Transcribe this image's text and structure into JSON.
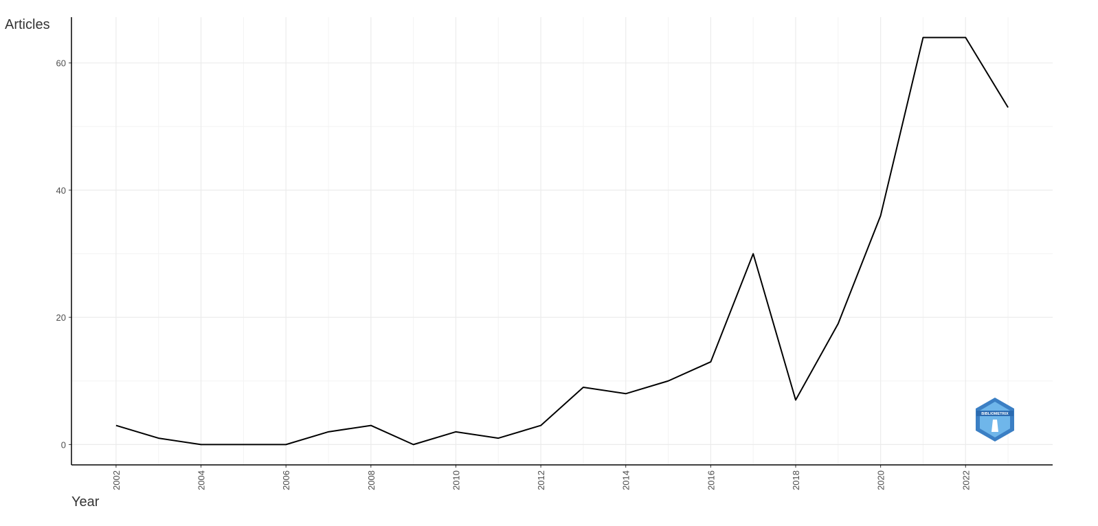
{
  "chart_data": {
    "type": "line",
    "x_label": "Year",
    "y_label": "Articles",
    "x": [
      2002,
      2003,
      2004,
      2005,
      2006,
      2007,
      2008,
      2009,
      2010,
      2011,
      2012,
      2013,
      2014,
      2015,
      2016,
      2017,
      2018,
      2019,
      2020,
      2021,
      2022,
      2023
    ],
    "series": [
      {
        "name": "Articles",
        "color": "#000000",
        "values": [
          3,
          1,
          0,
          0,
          0,
          2,
          3,
          0,
          2,
          1,
          3,
          9,
          8,
          10,
          13,
          30,
          7,
          19,
          36,
          64,
          64,
          53
        ]
      }
    ],
    "xlim": [
      2000.95,
      2024.05
    ],
    "ylim": [
      -3.2,
      67.2
    ],
    "xticks": [
      2002,
      2004,
      2006,
      2008,
      2010,
      2012,
      2014,
      2016,
      2018,
      2020,
      2022
    ],
    "yticks": [
      0,
      20,
      40,
      60
    ],
    "x_minor_grid": [
      2001,
      2003,
      2005,
      2007,
      2009,
      2011,
      2013,
      2015,
      2017,
      2019,
      2021,
      2023
    ],
    "y_minor_grid": [
      10,
      30,
      50
    ],
    "grid": true,
    "logo_text": "BIBLIOMETRIX"
  }
}
